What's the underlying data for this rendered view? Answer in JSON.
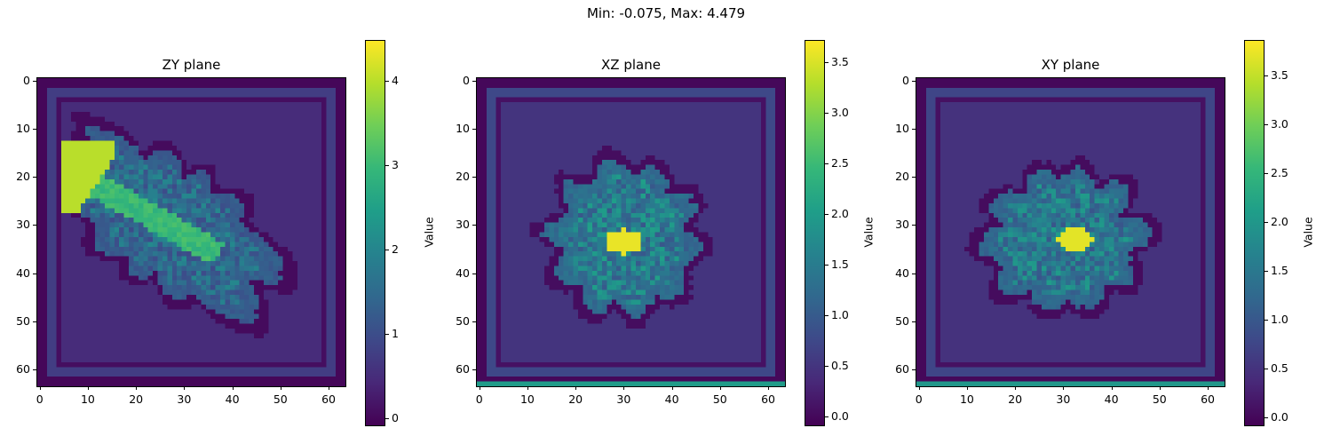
{
  "suptitle": "Min: -0.075, Max: 4.479",
  "colors": {
    "viridis": [
      "#440154",
      "#482878",
      "#3e4989",
      "#31688e",
      "#26828e",
      "#1f9e89",
      "#35b779",
      "#6ece58",
      "#b5de2b",
      "#fde725"
    ],
    "background": "#ffffff"
  },
  "chart_data": [
    {
      "type": "heatmap",
      "title": "ZY plane",
      "grid_size": 64,
      "x_ticks": [
        "0",
        "10",
        "20",
        "30",
        "40",
        "50",
        "60"
      ],
      "y_ticks": [
        "0",
        "10",
        "20",
        "30",
        "40",
        "50",
        "60"
      ],
      "colorbar": {
        "label": "Value",
        "ticks": [
          "0",
          "1",
          "2",
          "3",
          "4"
        ],
        "tick_values": [
          0,
          1,
          2,
          3,
          4
        ],
        "vmin": -0.075,
        "vmax": 4.479
      },
      "grid": false,
      "features": {
        "border_value": 0.0,
        "border_inner_value": 0.75,
        "interior_value": 0.5,
        "blob": {
          "cx": 27,
          "cy": 30,
          "rx": 26,
          "ry": 12,
          "angle_deg": 35,
          "value": 1.6
        },
        "streak": {
          "x0": 5,
          "y0": 18,
          "x1": 37,
          "y1": 36,
          "value": 3.2
        },
        "hot_region": {
          "x0": 5,
          "y0": 13,
          "x1": 15,
          "y1": 27,
          "value": 4.0
        }
      }
    },
    {
      "type": "heatmap",
      "title": "XZ plane",
      "grid_size": 64,
      "x_ticks": [
        "0",
        "10",
        "20",
        "30",
        "40",
        "50",
        "60"
      ],
      "y_ticks": [
        "0",
        "10",
        "20",
        "30",
        "40",
        "50",
        "60"
      ],
      "colorbar": {
        "label": "Value",
        "ticks": [
          "0.0",
          "0.5",
          "1.0",
          "1.5",
          "2.0",
          "2.5",
          "3.0",
          "3.5"
        ],
        "tick_values": [
          0,
          0.5,
          1,
          1.5,
          2,
          2.5,
          3,
          3.5
        ],
        "vmin": -0.075,
        "vmax": 3.72
      },
      "grid": false,
      "features": {
        "border_value": 0.0,
        "border_inner_value": 0.75,
        "interior_value": 0.5,
        "bottom_row_value": 2.0,
        "blob": {
          "cx": 30,
          "cy": 33,
          "rx": 15,
          "ry": 15,
          "angle_deg": 0,
          "value": 1.6
        },
        "hot_region": {
          "cx": 30,
          "cy": 33.5,
          "rx": 4,
          "ry": 2.5,
          "value": 3.6
        }
      }
    },
    {
      "type": "heatmap",
      "title": "XY plane",
      "grid_size": 64,
      "x_ticks": [
        "0",
        "10",
        "20",
        "30",
        "40",
        "50",
        "60"
      ],
      "y_ticks": [
        "0",
        "10",
        "20",
        "30",
        "40",
        "50",
        "60"
      ],
      "colorbar": {
        "label": "Value",
        "ticks": [
          "0.0",
          "0.5",
          "1.0",
          "1.5",
          "2.0",
          "2.5",
          "3.0",
          "3.5"
        ],
        "tick_values": [
          0,
          0.5,
          1,
          1.5,
          2,
          2.5,
          3,
          3.5
        ],
        "vmin": -0.075,
        "vmax": 3.86
      },
      "grid": false,
      "features": {
        "border_value": 0.0,
        "border_inner_value": 0.75,
        "interior_value": 0.5,
        "bottom_row_value": 2.0,
        "blob": {
          "cx": 30,
          "cy": 33,
          "rx": 16,
          "ry": 14,
          "angle_deg": 0,
          "value": 1.6
        },
        "hot_region": {
          "cx": 32.5,
          "cy": 33,
          "rx": 3.5,
          "ry": 2.5,
          "value": 3.7
        }
      }
    }
  ]
}
